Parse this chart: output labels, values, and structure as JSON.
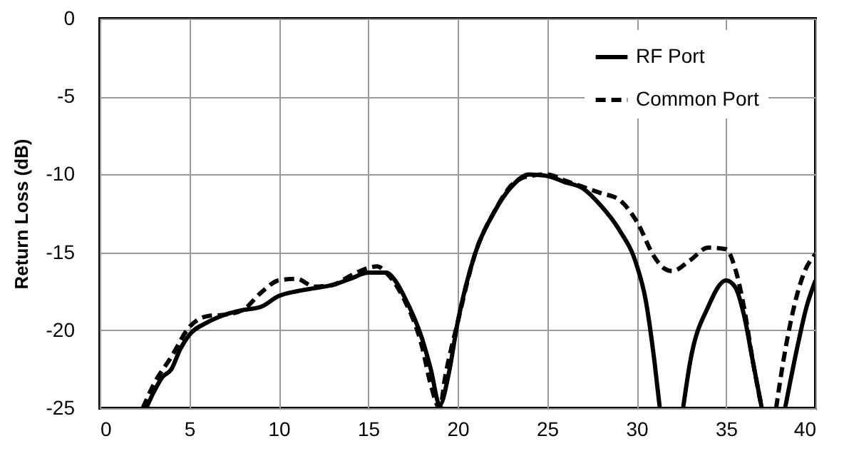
{
  "chart_data": {
    "type": "line",
    "ylabel": "Return Loss (dB)",
    "xlim": [
      0,
      40
    ],
    "xticks": [
      0,
      5,
      10,
      15,
      20,
      25,
      30,
      35,
      40
    ],
    "ylim": [
      -25,
      0
    ],
    "yticks": [
      -25,
      -20,
      -15,
      -10,
      -5,
      0
    ],
    "grid": true,
    "legend": "top right",
    "marker": "none",
    "series": [
      {
        "name": "RF Port",
        "color": "#000000",
        "line_style": "solid",
        "x": [
          2.6,
          3,
          3.5,
          4,
          4.5,
          5,
          6,
          7,
          8,
          9,
          10,
          11,
          12,
          13,
          14,
          15,
          16,
          16.5,
          17,
          18,
          18.5,
          19,
          19.5,
          20,
          21,
          22,
          23,
          24,
          25,
          26,
          27,
          28,
          29,
          30,
          30.5,
          31,
          31.3,
          31.9,
          32.6,
          33,
          34,
          35,
          35.5,
          36,
          36.5,
          37,
          37.6,
          38.3,
          39,
          39.5,
          40
        ],
        "values": [
          -25,
          -24,
          -23,
          -22.5,
          -21.2,
          -20.3,
          -19.5,
          -19,
          -18.7,
          -18.5,
          -17.8,
          -17.5,
          -17.3,
          -17.1,
          -16.7,
          -16.3,
          -16.3,
          -16.8,
          -17.8,
          -20.5,
          -22.5,
          -24.8,
          -22.8,
          -19.5,
          -15,
          -12.5,
          -10.8,
          -10,
          -10.1,
          -10.5,
          -10.9,
          -12,
          -13.5,
          -15.8,
          -18,
          -22,
          -25,
          null,
          -25,
          -22,
          -18.5,
          -16.8,
          -17.2,
          -19,
          -22,
          -25,
          null,
          -25,
          -21,
          -18.5,
          -16.8
        ]
      },
      {
        "name": "Common Port",
        "color": "#000000",
        "line_style": "dashed",
        "x": [
          2.4,
          3,
          4,
          5,
          6,
          7,
          8,
          9,
          10,
          11,
          12,
          13,
          14,
          15,
          15.5,
          16,
          17,
          18,
          18.5,
          19,
          19.3,
          20,
          21,
          22,
          23,
          24,
          25,
          26,
          27,
          28,
          29,
          30,
          31,
          31.5,
          32,
          33,
          34,
          35,
          35.5,
          36,
          36.5,
          37,
          37.4,
          37.8,
          38.2,
          38.7,
          39.3,
          40
        ],
        "values": [
          -25,
          -23.5,
          -21.7,
          -19.8,
          -19.1,
          -19,
          -18.7,
          -17.6,
          -16.8,
          -16.7,
          -17.2,
          -17.1,
          -16.5,
          -16,
          -15.9,
          -16.3,
          -18,
          -21,
          -23.5,
          -25,
          -23,
          -19.5,
          -15,
          -12.5,
          -10.7,
          -10.1,
          -10,
          -10.4,
          -10.8,
          -11.2,
          -11.6,
          -13,
          -15.3,
          -16,
          -16.2,
          -15.5,
          -14.7,
          -14.8,
          -16,
          -18.5,
          -22,
          -25,
          null,
          -25,
          -22,
          -19,
          -16.5,
          -15.1
        ]
      }
    ]
  }
}
